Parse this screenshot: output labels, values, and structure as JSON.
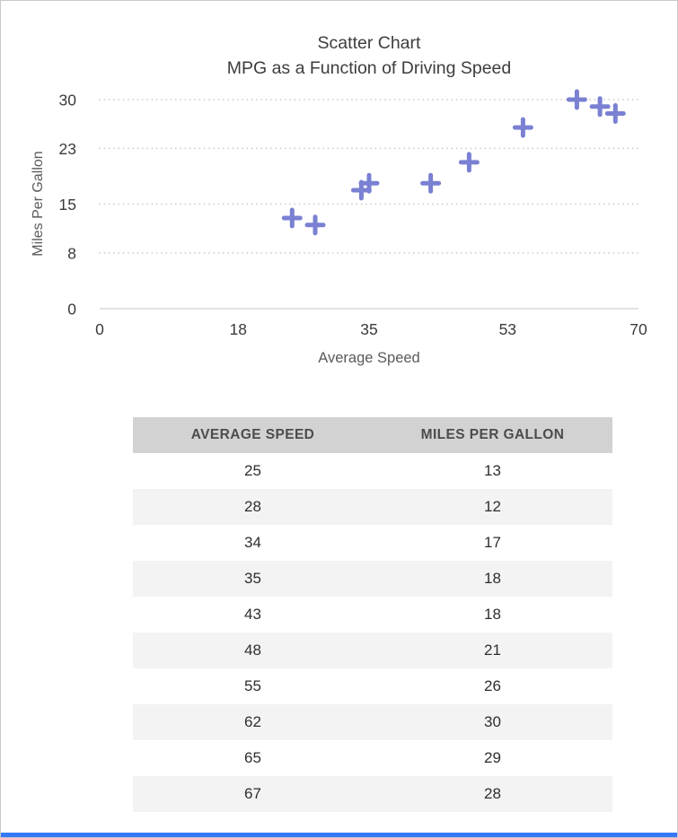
{
  "chart": {
    "title_line1": "Scatter Chart",
    "title_line2": "MPG as a Function of Driving Speed",
    "xlabel": "Average Speed",
    "ylabel": "Miles Per Gallon"
  },
  "chart_data": {
    "type": "scatter",
    "title": "Scatter Chart",
    "subtitle": "MPG as a Function of Driving Speed",
    "xlabel": "Average Speed",
    "ylabel": "Miles Per Gallon",
    "x": [
      25,
      28,
      34,
      35,
      43,
      48,
      55,
      62,
      65,
      67
    ],
    "y": [
      13,
      12,
      17,
      18,
      18,
      21,
      26,
      30,
      29,
      28
    ],
    "xlim": [
      0,
      70
    ],
    "ylim": [
      0,
      30
    ],
    "x_ticks": [
      0,
      18,
      35,
      53,
      70
    ],
    "y_ticks": [
      0,
      8,
      15,
      23,
      30
    ],
    "marker": "plus",
    "marker_color": "#7a80d2",
    "grid": "horizontal-dotted",
    "legend": "none"
  },
  "table": {
    "headers": [
      "AVERAGE SPEED",
      "MILES PER GALLON"
    ],
    "rows": [
      [
        "25",
        "13"
      ],
      [
        "28",
        "12"
      ],
      [
        "34",
        "17"
      ],
      [
        "35",
        "18"
      ],
      [
        "43",
        "18"
      ],
      [
        "48",
        "21"
      ],
      [
        "55",
        "26"
      ],
      [
        "62",
        "30"
      ],
      [
        "65",
        "29"
      ],
      [
        "67",
        "28"
      ]
    ]
  },
  "colors": {
    "accent_bar": "#3478f6",
    "table_header_bg": "#d2d2d2",
    "marker": "#7a80d2"
  }
}
